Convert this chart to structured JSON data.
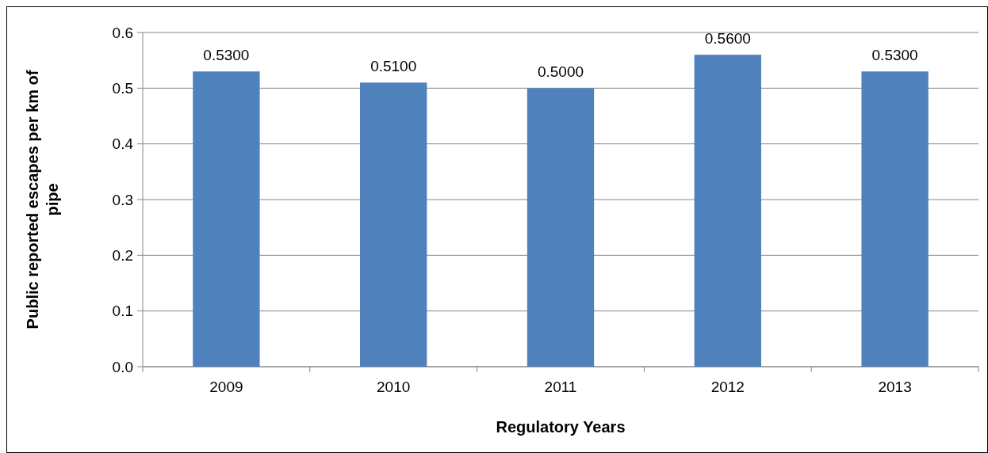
{
  "chart_data": {
    "type": "bar",
    "xlabel": "Regulatory Years",
    "ylabel": "Public reported escapes per km of pipe",
    "categories": [
      "2009",
      "2010",
      "2011",
      "2012",
      "2013"
    ],
    "values": [
      0.53,
      0.51,
      0.5,
      0.56,
      0.53
    ],
    "value_labels": [
      "0.5300",
      "0.5100",
      "0.5000",
      "0.5600",
      "0.5300"
    ],
    "color": "#4f81bd",
    "ylim": [
      0,
      0.6
    ],
    "yticks": [
      {
        "value": 0,
        "label": "0.0"
      },
      0.1,
      0.2,
      0.3,
      0.4,
      0.5,
      0.6
    ],
    "grid": "y"
  }
}
